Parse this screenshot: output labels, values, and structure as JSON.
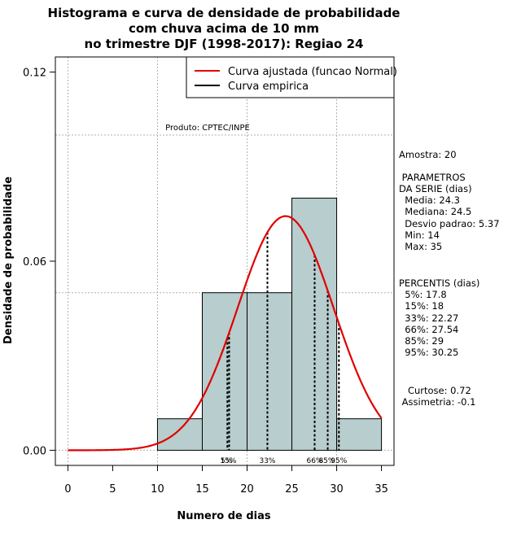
{
  "chart_data": {
    "type": "histogram",
    "title": [
      "Histograma e curva de densidade de probabilidade",
      "com chuva acima de 10 mm",
      "no trimestre DJF (1998-2017): Regiao 24"
    ],
    "xlabel": "Numero de dias",
    "ylabel": "Densidade de probabilidade",
    "xlim": [
      -1.4,
      36.4
    ],
    "ylim": [
      -0.0048,
      0.1248
    ],
    "x_ticks": [
      0,
      5,
      10,
      15,
      20,
      25,
      30,
      35
    ],
    "y_ticks": [
      0.0,
      0.06,
      0.12
    ],
    "y_tick_labels": [
      "0.00",
      "0.06",
      "0.12"
    ],
    "grid_x": [
      0,
      10,
      20,
      30
    ],
    "grid_y": [
      0.0,
      0.05,
      0.1
    ],
    "bins": [
      {
        "start": 10,
        "end": 15,
        "density": 0.01
      },
      {
        "start": 15,
        "end": 20,
        "density": 0.05
      },
      {
        "start": 20,
        "end": 25,
        "density": 0.05
      },
      {
        "start": 25,
        "end": 30,
        "density": 0.08
      },
      {
        "start": 30,
        "end": 35,
        "density": 0.01
      }
    ],
    "bar_color": "#b8cdcd",
    "normal_fit": {
      "mean": 24.3,
      "sd": 5.37,
      "x_range": [
        0,
        35
      ],
      "color": "#e00000"
    },
    "percentile_lines": [
      {
        "label": "5%",
        "x": 17.8
      },
      {
        "label": "15%",
        "x": 18
      },
      {
        "label": "33%",
        "x": 22.27
      },
      {
        "label": "66%",
        "x": 27.54
      },
      {
        "label": "85%",
        "x": 29
      },
      {
        "label": "95%",
        "x": 30.25
      }
    ],
    "percentile_axis_labels": [
      {
        "text": "5%",
        "x": 17.7
      },
      {
        "text": "15%",
        "x": 17.9
      },
      {
        "text": "33%",
        "x": 22.27
      },
      {
        "text": "66%",
        "x": 27.54
      },
      {
        "text": "85%",
        "x": 28.9
      },
      {
        "text": "95%",
        "x": 30.25
      }
    ],
    "legend": {
      "placement": "top-right",
      "items": [
        {
          "label": "Curva ajustada (funcao Normal)",
          "color": "#e00000"
        },
        {
          "label": "Curva empirica",
          "color": "#000000"
        }
      ]
    },
    "annotation": "Produto: CPTEC/INPE"
  },
  "side_panel": {
    "sample": "Amostra: 20",
    "params_title": " PARAMETROS\nDA SERIE (dias)",
    "params": "  Media: 24.3\n  Mediana: 24.5\n  Desvio padrao: 5.37\n  Min: 14\n  Max: 35",
    "percentis_title": "PERCENTIS (dias)",
    "percentis": "  5%: 17.8\n  15%: 18\n  33%: 22.27\n  66%: 27.54\n  85%: 29\n  95%: 30.25",
    "shape": "   Curtose: 0.72\n Assimetria: -0.1"
  }
}
